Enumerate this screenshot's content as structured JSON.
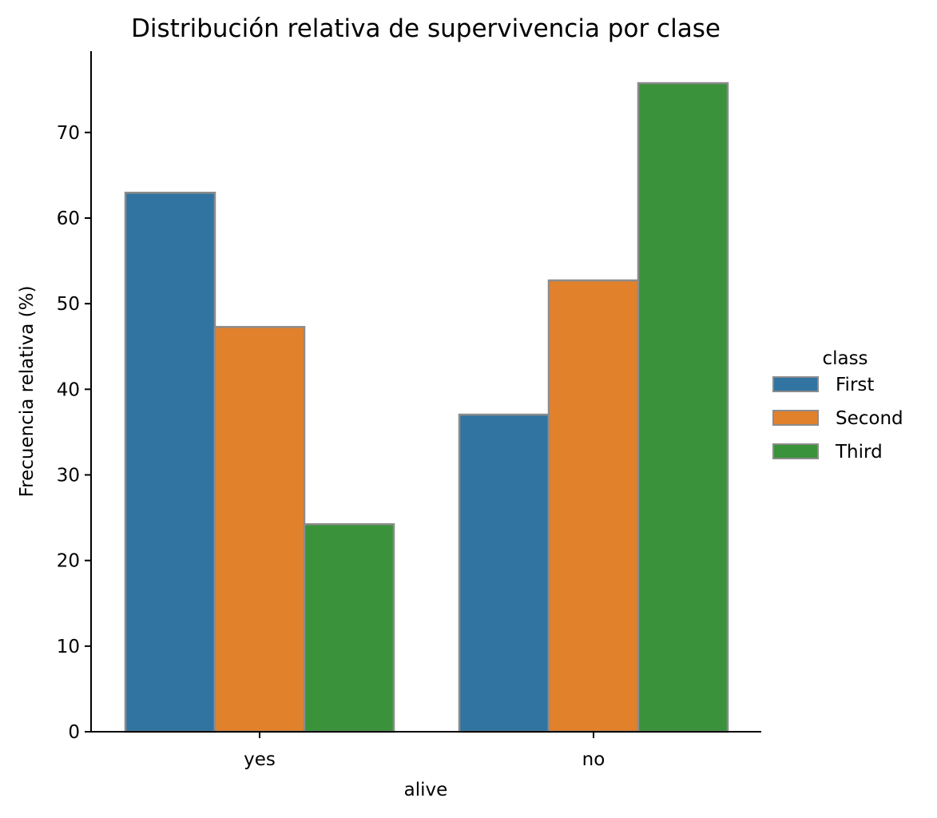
{
  "chart_data": {
    "type": "bar",
    "title": "Distribución relativa de supervivencia por clase",
    "xlabel": "alive",
    "ylabel": "Frecuencia relativa (%)",
    "categories": [
      "yes",
      "no"
    ],
    "series": [
      {
        "name": "First",
        "color": "#3274a1",
        "values": [
          62.96,
          37.04
        ]
      },
      {
        "name": "Second",
        "color": "#e1812c",
        "values": [
          47.28,
          52.72
        ]
      },
      {
        "name": "Third",
        "color": "#3a923a",
        "values": [
          24.24,
          75.76
        ]
      }
    ],
    "ylim": [
      0,
      79.5
    ],
    "yticks": [
      0,
      10,
      20,
      30,
      40,
      50,
      60,
      70
    ],
    "grid": false,
    "legend": {
      "title": "class",
      "placement": "right",
      "entries": [
        "First",
        "Second",
        "Third"
      ]
    }
  }
}
